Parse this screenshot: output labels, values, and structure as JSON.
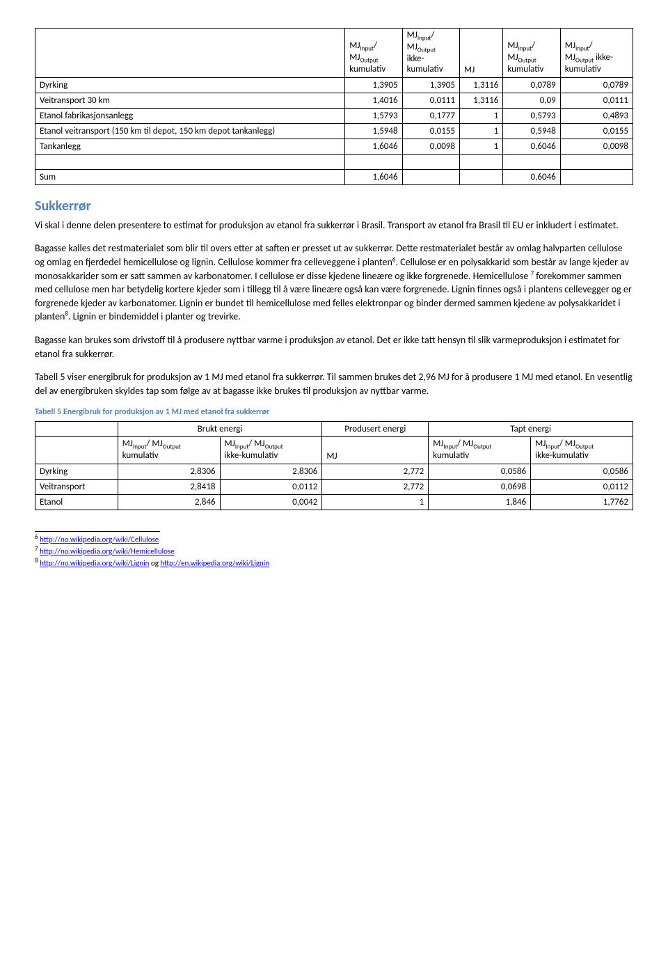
{
  "table1": {
    "headers": {
      "c1": {
        "l1": "MJ",
        "s1": "Input",
        "l2": "/",
        "l3": "MJ",
        "s2": "Output",
        "l4": "kumulativ"
      },
      "c2": {
        "l1": "MJ",
        "s1": "Input",
        "l2": "/",
        "l3": "MJ",
        "s2": "Output",
        "l4": "ikke-",
        "l5": "kumulativ"
      },
      "c3": "MJ",
      "c4": {
        "l1": "MJ",
        "s1": "Input",
        "l2": "/",
        "l3": "MJ",
        "s2": "Output",
        "l4": "kumulativ"
      },
      "c5": {
        "l1": "MJ",
        "s1": "Input",
        "l2": "/",
        "l3": "MJ",
        "s2": "Output",
        "l4": " ikke-",
        "l5": "kumulativ"
      }
    },
    "rows": [
      {
        "label": "Dyrking",
        "v": [
          "1,3905",
          "1,3905",
          "1,3116",
          "0,0789",
          "0,0789"
        ]
      },
      {
        "label": "Veitransport 30 km",
        "v": [
          "1,4016",
          "0,0111",
          "1,3116",
          "0,09",
          "0,0111"
        ]
      },
      {
        "label": "Etanol fabrikasjonsanlegg",
        "v": [
          "1,5793",
          "0,1777",
          "1",
          "0,5793",
          "0,4893"
        ]
      },
      {
        "label": "Etanol veitransport (150 km til depot, 150 km depot tankanlegg)",
        "v": [
          "1,5948",
          "0,0155",
          "1",
          "0,5948",
          "0,0155"
        ]
      },
      {
        "label": "Tankanlegg",
        "v": [
          "1,6046",
          "0,0098",
          "1",
          "0,6046",
          "0,0098"
        ]
      }
    ],
    "blank": {
      "label": "",
      "v": [
        "",
        "",
        "",
        "",
        ""
      ]
    },
    "sum": {
      "label": "Sum",
      "v": [
        "1,6046",
        "",
        "",
        "0,6046",
        ""
      ]
    }
  },
  "section_title": "Sukkerrør",
  "para1": "Vi skal i denne delen presentere to estimat for produksjon av etanol fra sukkerrør i Brasil. Transport av etanol fra Brasil til EU er inkludert i estimatet.",
  "para2a": "Bagasse kalles det restmaterialet som blir til overs etter at saften er presset ut av sukkerrør. Dette restmaterialet består av omlag halvparten cellulose og omlag en fjerdedel hemicellulose og lignin. Cellulose kommer fra celleveggene i planten",
  "para2b": ". Cellulose er en polysakkarid som består av lange kjeder av monosakkarider som er satt sammen av karbonatomer. I cellulose er disse kjedene lineære og ikke forgrenede. Hemicellulose",
  "para2c": " forekommer sammen med cellulose men har betydelig kortere kjeder som i tillegg til å være lineære også kan være forgrenede. Lignin finnes også i plantens cellevegger og er forgrenede kjeder av karbonatomer. Lignin er bundet til hemicellulose med felles elektronpar og binder dermed sammen kjedene av polysakkaridet i planten",
  "para2d": ". Lignin er bindemiddel i planter og trevirke.",
  "para3": "Bagasse kan brukes som drivstoff til å produsere nyttbar varme i produksjon av etanol. Det er ikke tatt hensyn til slik varmeproduksjon i estimatet for etanol fra sukkerrør.",
  "para4": "Tabell 5 viser energibruk for produksjon av 1 MJ med etanol fra sukkerrør. Til sammen brukes det 2,96 MJ for å produsere 1 MJ med etanol. En vesentlig del av energibruken skyldes tap som følge av at bagasse ikke brukes til produksjon av nyttbar varme.",
  "caption": "Tabell 5 Energibruk for produksjon av 1 MJ med etanol fra sukkerrør",
  "table2": {
    "group_headers": {
      "g1": "Brukt energi",
      "g2": "Produsert energi",
      "g3": "Tapt energi"
    },
    "sub_headers": {
      "c1": "kumulativ",
      "c2": "ikke-kumulativ",
      "c3": "MJ",
      "c4": "kumulativ",
      "c5": "ikke-kumulativ"
    },
    "mj_prefix": {
      "l1": "MJ",
      "s1": "Input",
      "l2": "/ MJ",
      "s2": "Output"
    },
    "rows": [
      {
        "label": "Dyrking",
        "v": [
          "2,8306",
          "2,8306",
          "2,772",
          "0,0586",
          "0,0586"
        ]
      },
      {
        "label": "Veitransport",
        "v": [
          "2,8418",
          "0,0112",
          "2,772",
          "0,0698",
          "0,0112"
        ]
      },
      {
        "label": "Etanol",
        "v": [
          "2,846",
          "0,0042",
          "1",
          "1,846",
          "1,7762"
        ]
      }
    ]
  },
  "footnotes": {
    "f6": {
      "n": "6",
      "url": "http://no.wikipedia.org/wiki/Cellulose"
    },
    "f7": {
      "n": "7",
      "url": "http://no.wikipedia.org/wiki/Hemicellulose"
    },
    "f8": {
      "n": "8",
      "url1": "http://no.wikipedia.org/wiki/Lignin",
      "mid": " og ",
      "url2": "http://en.wikipedia.org/wiki/Lignin"
    }
  }
}
